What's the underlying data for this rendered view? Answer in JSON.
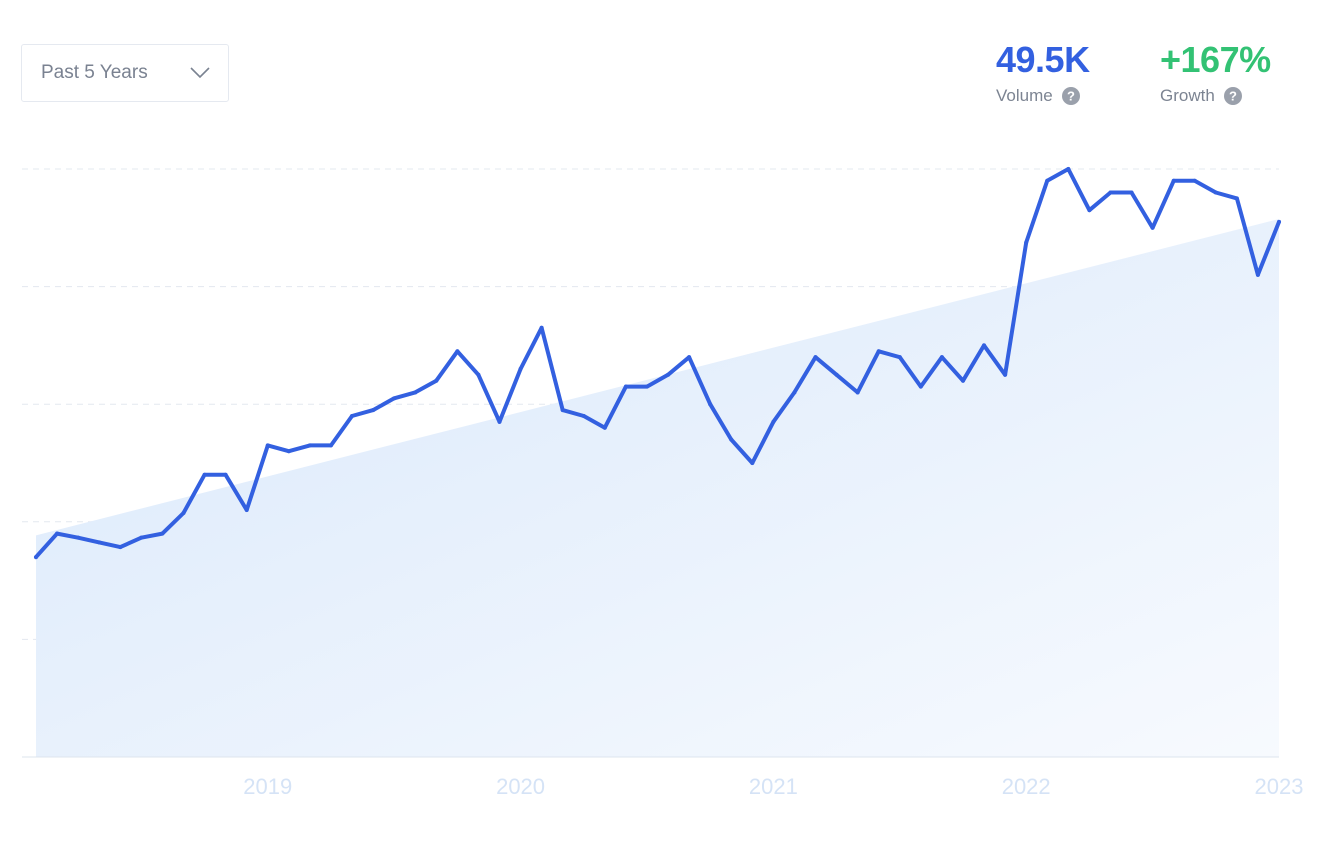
{
  "controls": {
    "timeframe": "Past 5 Years"
  },
  "stats": {
    "volume": {
      "value": "49.5K",
      "label": "Volume"
    },
    "growth": {
      "value": "+167%",
      "label": "Growth"
    }
  },
  "icons": {
    "dropdown": "chevron-down-icon",
    "help": "question-circle-icon"
  },
  "colors": {
    "line": "#3360e0",
    "area": "#dbe9fb",
    "volume": "#3360e0",
    "growth": "#33c274",
    "grid": "#e3e8ef",
    "tick": "#d5e3f6"
  },
  "chart_data": {
    "type": "line",
    "title": "",
    "xlabel": "",
    "ylabel": "",
    "x_ticks": [
      "2019",
      "2020",
      "2021",
      "2022",
      "2023"
    ],
    "x_range": [
      2018.0833,
      2023.0
    ],
    "y_range": [
      0,
      100
    ],
    "grid": "horizontal dashed",
    "trend_fill": {
      "start": 37.7,
      "end": 91.5
    },
    "series": [
      {
        "name": "",
        "points": [
          {
            "x": 2018.0833,
            "y": 34.0
          },
          {
            "x": 2018.1667,
            "y": 38.0
          },
          {
            "x": 2018.25,
            "y": 37.3
          },
          {
            "x": 2018.3333,
            "y": 36.5
          },
          {
            "x": 2018.4167,
            "y": 35.7
          },
          {
            "x": 2018.5,
            "y": 37.3
          },
          {
            "x": 2018.5833,
            "y": 38.0
          },
          {
            "x": 2018.6667,
            "y": 41.5
          },
          {
            "x": 2018.75,
            "y": 48.0
          },
          {
            "x": 2018.8333,
            "y": 48.0
          },
          {
            "x": 2018.9167,
            "y": 42.0
          },
          {
            "x": 2019.0,
            "y": 53.0
          },
          {
            "x": 2019.0833,
            "y": 52.0
          },
          {
            "x": 2019.1667,
            "y": 53.0
          },
          {
            "x": 2019.25,
            "y": 53.0
          },
          {
            "x": 2019.3333,
            "y": 58.0
          },
          {
            "x": 2019.4167,
            "y": 59.0
          },
          {
            "x": 2019.5,
            "y": 61.0
          },
          {
            "x": 2019.5833,
            "y": 62.0
          },
          {
            "x": 2019.6667,
            "y": 64.0
          },
          {
            "x": 2019.75,
            "y": 69.0
          },
          {
            "x": 2019.8333,
            "y": 65.0
          },
          {
            "x": 2019.9167,
            "y": 57.0
          },
          {
            "x": 2020.0,
            "y": 66.0
          },
          {
            "x": 2020.0833,
            "y": 73.0
          },
          {
            "x": 2020.1667,
            "y": 59.0
          },
          {
            "x": 2020.25,
            "y": 58.0
          },
          {
            "x": 2020.3333,
            "y": 56.0
          },
          {
            "x": 2020.4167,
            "y": 63.0
          },
          {
            "x": 2020.5,
            "y": 63.0
          },
          {
            "x": 2020.5833,
            "y": 65.0
          },
          {
            "x": 2020.6667,
            "y": 68.0
          },
          {
            "x": 2020.75,
            "y": 60.0
          },
          {
            "x": 2020.8333,
            "y": 54.0
          },
          {
            "x": 2020.9167,
            "y": 50.0
          },
          {
            "x": 2021.0,
            "y": 57.0
          },
          {
            "x": 2021.0833,
            "y": 62.0
          },
          {
            "x": 2021.1667,
            "y": 68.0
          },
          {
            "x": 2021.25,
            "y": 65.0
          },
          {
            "x": 2021.3333,
            "y": 62.0
          },
          {
            "x": 2021.4167,
            "y": 69.0
          },
          {
            "x": 2021.5,
            "y": 68.0
          },
          {
            "x": 2021.5833,
            "y": 63.0
          },
          {
            "x": 2021.6667,
            "y": 68.0
          },
          {
            "x": 2021.75,
            "y": 64.0
          },
          {
            "x": 2021.8333,
            "y": 70.0
          },
          {
            "x": 2021.9167,
            "y": 65.0
          },
          {
            "x": 2022.0,
            "y": 87.5
          },
          {
            "x": 2022.0833,
            "y": 98.0
          },
          {
            "x": 2022.1667,
            "y": 100.0
          },
          {
            "x": 2022.25,
            "y": 93.0
          },
          {
            "x": 2022.3333,
            "y": 96.0
          },
          {
            "x": 2022.4167,
            "y": 96.0
          },
          {
            "x": 2022.5,
            "y": 90.0
          },
          {
            "x": 2022.5833,
            "y": 98.0
          },
          {
            "x": 2022.6667,
            "y": 98.0
          },
          {
            "x": 2022.75,
            "y": 96.0
          },
          {
            "x": 2022.8333,
            "y": 95.0
          },
          {
            "x": 2022.9167,
            "y": 82.0
          },
          {
            "x": 2023.0,
            "y": 91.0
          }
        ]
      }
    ]
  }
}
